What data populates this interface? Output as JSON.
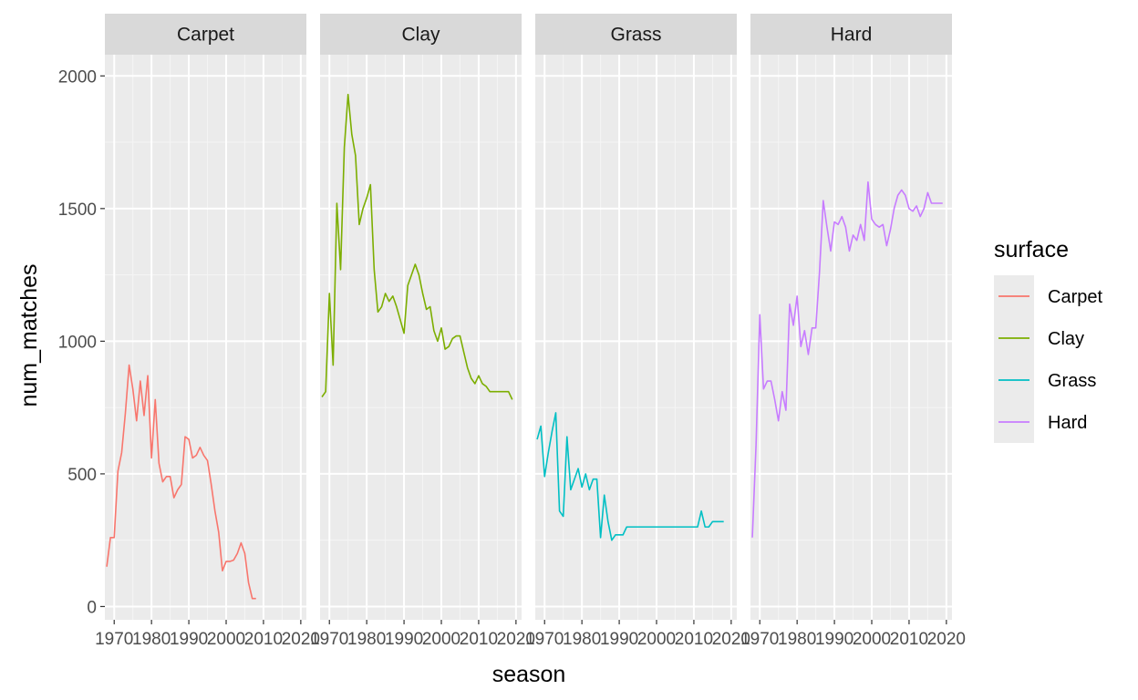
{
  "chart_data": {
    "type": "line",
    "xlabel": "season",
    "ylabel": "num_matches",
    "xlim": [
      1967.5,
      2021.5
    ],
    "ylim": [
      -50,
      2080
    ],
    "x_ticks": [
      1970,
      1980,
      1990,
      2000,
      2010,
      2020
    ],
    "y_ticks": [
      0,
      500,
      1000,
      1500,
      2000
    ],
    "facet_by": "surface",
    "grid": true,
    "legend": {
      "title": "surface",
      "position": "right",
      "entries": [
        "Carpet",
        "Clay",
        "Grass",
        "Hard"
      ]
    },
    "series": [
      {
        "name": "Carpet",
        "color": "#F8766D",
        "x": [
          1968,
          1969,
          1970,
          1971,
          1972,
          1973,
          1974,
          1975,
          1976,
          1977,
          1978,
          1979,
          1980,
          1981,
          1982,
          1983,
          1984,
          1985,
          1986,
          1987,
          1988,
          1989,
          1990,
          1991,
          1992,
          1993,
          1994,
          1995,
          1996,
          1997,
          1998,
          1999,
          2000,
          2001,
          2002,
          2003,
          2004,
          2005,
          2006,
          2007,
          2008
        ],
        "y": [
          150,
          260,
          260,
          510,
          580,
          730,
          910,
          820,
          700,
          850,
          720,
          870,
          560,
          780,
          540,
          470,
          490,
          490,
          410,
          440,
          460,
          640,
          630,
          560,
          570,
          600,
          570,
          550,
          460,
          360,
          280,
          135,
          170,
          170,
          175,
          200,
          240,
          200,
          90,
          30,
          30
        ]
      },
      {
        "name": "Clay",
        "color": "#7CAE00",
        "x": [
          1968,
          1969,
          1970,
          1971,
          1972,
          1973,
          1974,
          1975,
          1976,
          1977,
          1978,
          1979,
          1980,
          1981,
          1982,
          1983,
          1984,
          1985,
          1986,
          1987,
          1988,
          1989,
          1990,
          1991,
          1992,
          1993,
          1994,
          1995,
          1996,
          1997,
          1998,
          1999,
          2000,
          2001,
          2002,
          2003,
          2004,
          2005,
          2006,
          2007,
          2008,
          2009,
          2010,
          2011,
          2012,
          2013,
          2014,
          2015,
          2016,
          2017,
          2018,
          2019
        ],
        "y": [
          790,
          810,
          1180,
          910,
          1520,
          1270,
          1730,
          1930,
          1780,
          1700,
          1440,
          1500,
          1540,
          1590,
          1270,
          1110,
          1130,
          1180,
          1150,
          1170,
          1130,
          1080,
          1030,
          1210,
          1250,
          1290,
          1250,
          1180,
          1120,
          1130,
          1040,
          1000,
          1050,
          970,
          980,
          1010,
          1020,
          1020,
          960,
          900,
          860,
          840,
          870,
          840,
          830,
          810,
          810,
          810,
          810,
          810,
          810,
          780
        ]
      },
      {
        "name": "Grass",
        "color": "#00BFC4",
        "x": [
          1968,
          1969,
          1970,
          1971,
          1972,
          1973,
          1974,
          1975,
          1976,
          1977,
          1978,
          1979,
          1980,
          1981,
          1982,
          1983,
          1984,
          1985,
          1986,
          1987,
          1988,
          1989,
          1990,
          1991,
          1992,
          1993,
          1994,
          1995,
          1996,
          1997,
          1998,
          1999,
          2000,
          2001,
          2002,
          2003,
          2004,
          2005,
          2006,
          2007,
          2008,
          2009,
          2010,
          2011,
          2012,
          2013,
          2014,
          2015,
          2016,
          2017,
          2018
        ],
        "y": [
          630,
          680,
          490,
          580,
          660,
          730,
          360,
          340,
          640,
          440,
          480,
          520,
          450,
          500,
          440,
          480,
          480,
          260,
          420,
          320,
          250,
          270,
          270,
          270,
          300,
          300,
          300,
          300,
          300,
          300,
          300,
          300,
          300,
          300,
          300,
          300,
          300,
          300,
          300,
          300,
          300,
          300,
          300,
          300,
          360,
          300,
          300,
          320,
          320,
          320,
          320
        ]
      },
      {
        "name": "Hard",
        "color": "#C77CFF",
        "x": [
          1968,
          1969,
          1970,
          1971,
          1972,
          1973,
          1974,
          1975,
          1976,
          1977,
          1978,
          1979,
          1980,
          1981,
          1982,
          1983,
          1984,
          1985,
          1986,
          1987,
          1988,
          1989,
          1990,
          1991,
          1992,
          1993,
          1994,
          1995,
          1996,
          1997,
          1998,
          1999,
          2000,
          2001,
          2002,
          2003,
          2004,
          2005,
          2006,
          2007,
          2008,
          2009,
          2010,
          2011,
          2012,
          2013,
          2014,
          2015,
          2016,
          2017,
          2018,
          2019
        ],
        "y": [
          260,
          610,
          1100,
          820,
          850,
          850,
          780,
          700,
          810,
          740,
          1140,
          1060,
          1170,
          980,
          1040,
          950,
          1050,
          1050,
          1260,
          1530,
          1430,
          1340,
          1450,
          1440,
          1470,
          1430,
          1340,
          1400,
          1380,
          1440,
          1380,
          1600,
          1460,
          1440,
          1430,
          1440,
          1360,
          1420,
          1500,
          1550,
          1570,
          1550,
          1500,
          1490,
          1510,
          1470,
          1500,
          1560,
          1520,
          1520,
          1520,
          1520
        ]
      }
    ]
  }
}
